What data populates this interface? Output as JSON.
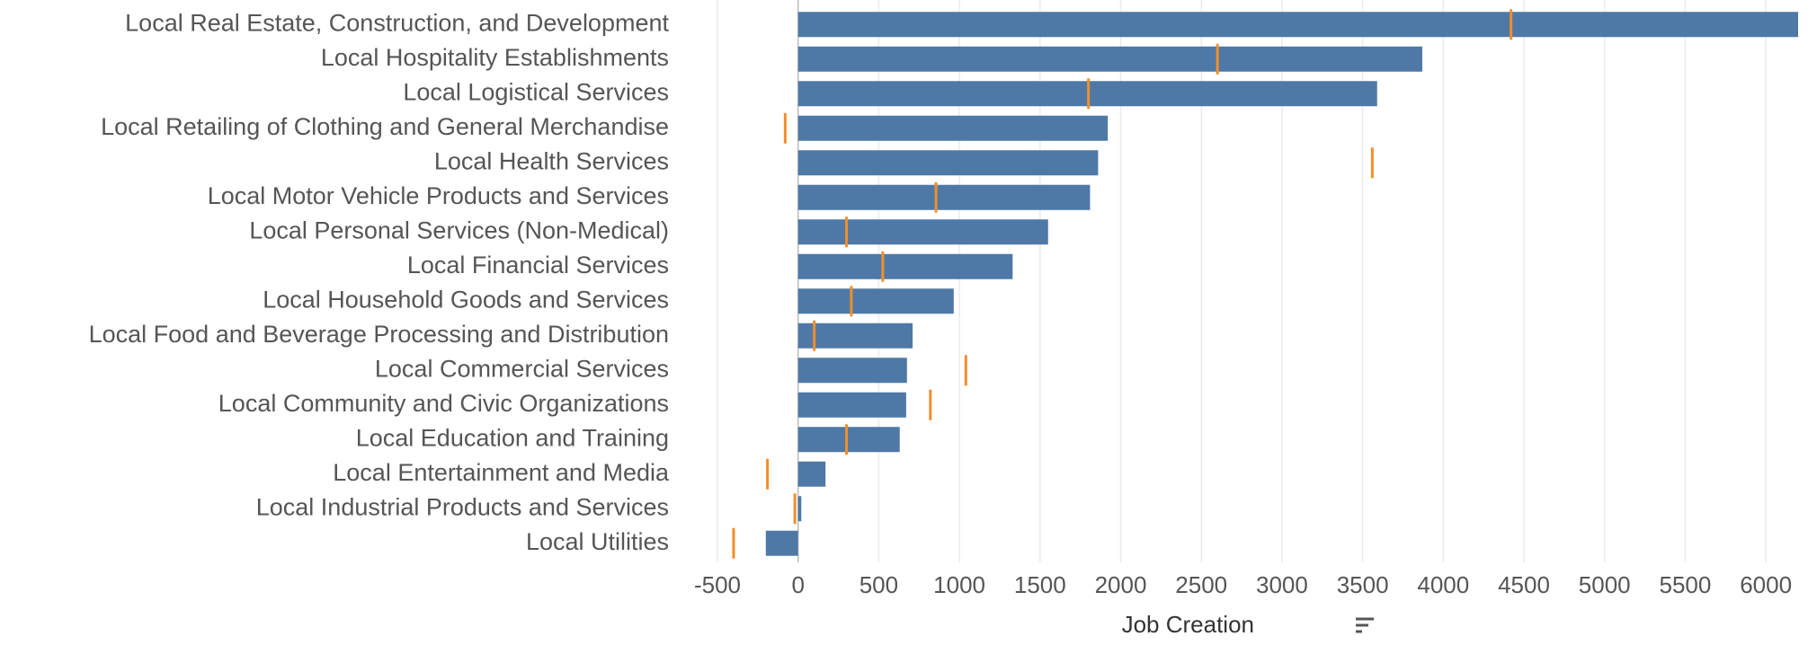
{
  "chart_data": {
    "type": "bar",
    "orientation": "horizontal",
    "categories": [
      "Local Real Estate, Construction, and Development",
      "Local Hospitality Establishments",
      "Local Logistical Services",
      "Local Retailing of Clothing and General Merchandise",
      "Local Health Services",
      "Local Motor Vehicle Products and Services",
      "Local Personal Services (Non-Medical)",
      "Local Financial Services",
      "Local Household Goods and Services",
      "Local Food and Beverage Processing and Distribution",
      "Local Commercial Services",
      "Local Community and Civic Organizations",
      "Local Education and Training",
      "Local Entertainment and Media",
      "Local Industrial Products and Services",
      "Local Utilities"
    ],
    "values": [
      6200,
      3870,
      3590,
      1920,
      1860,
      1810,
      1550,
      1330,
      965,
      710,
      675,
      670,
      630,
      170,
      20,
      -200
    ],
    "reference": [
      4420,
      2600,
      1800,
      -80,
      3560,
      855,
      300,
      525,
      330,
      100,
      1040,
      820,
      300,
      -190,
      -20,
      -400
    ],
    "color": "#4e79a7",
    "reference_color": "#f28e2b",
    "xlabel": "Job Creation",
    "xlim": [
      -500,
      6200
    ],
    "xticks": [
      -500,
      0,
      500,
      1000,
      1500,
      2000,
      2500,
      3000,
      3500,
      4000,
      4500,
      5000,
      5500,
      6000
    ],
    "grid": true
  }
}
